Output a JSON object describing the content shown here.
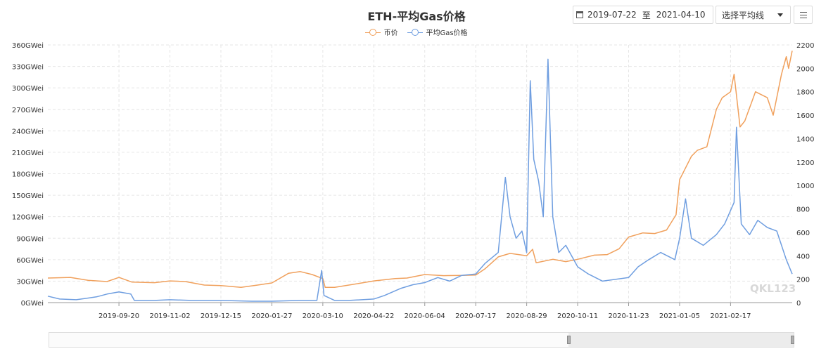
{
  "header": {
    "title": "ETH-平均Gas价格",
    "date_start": "2019-07-22",
    "date_sep": "至",
    "date_end": "2021-04-10",
    "avg_select": "选择平均线"
  },
  "legend": [
    {
      "name": "币价",
      "color": "#f0a05c"
    },
    {
      "name": "平均Gas价格",
      "color": "#6f9ee0"
    }
  ],
  "watermark": "QKL123",
  "chart_data": {
    "type": "line",
    "title": "ETH-平均Gas价格",
    "x_range": [
      "2019-07-22",
      "2021-04-10"
    ],
    "x_ticks": [
      "2019-09-20",
      "2019-11-02",
      "2019-12-15",
      "2020-01-27",
      "2020-03-10",
      "2020-04-22",
      "2020-06-04",
      "2020-07-17",
      "2020-08-29",
      "2020-10-11",
      "2020-11-23",
      "2021-01-05",
      "2021-02-17"
    ],
    "y_left": {
      "ticks": [
        "0GWei",
        "30GWei",
        "60GWei",
        "90GWei",
        "120GWei",
        "150GWei",
        "180GWei",
        "210GWei",
        "240GWei",
        "270GWei",
        "300GWei",
        "330GWei",
        "360GWei"
      ],
      "min": 0,
      "max": 360
    },
    "y_right": {
      "ticks": [
        "0",
        "200",
        "400",
        "600",
        "800",
        "1000",
        "1200",
        "1400",
        "1600",
        "1800",
        "2000",
        "2200"
      ],
      "min": 0,
      "max": 2200
    },
    "grid": true,
    "legend_position": "top-center",
    "series": [
      {
        "name": "币价",
        "axis": "right",
        "color": "#f0a05c",
        "points": [
          [
            "2019-07-22",
            210
          ],
          [
            "2019-08-10",
            215
          ],
          [
            "2019-08-25",
            190
          ],
          [
            "2019-09-10",
            180
          ],
          [
            "2019-09-20",
            215
          ],
          [
            "2019-10-01",
            175
          ],
          [
            "2019-10-20",
            170
          ],
          [
            "2019-11-02",
            185
          ],
          [
            "2019-11-15",
            180
          ],
          [
            "2019-12-01",
            150
          ],
          [
            "2019-12-15",
            145
          ],
          [
            "2020-01-01",
            130
          ],
          [
            "2020-01-15",
            150
          ],
          [
            "2020-01-27",
            168
          ],
          [
            "2020-02-10",
            250
          ],
          [
            "2020-02-20",
            265
          ],
          [
            "2020-03-01",
            240
          ],
          [
            "2020-03-10",
            205
          ],
          [
            "2020-03-12",
            130
          ],
          [
            "2020-03-20",
            130
          ],
          [
            "2020-04-10",
            165
          ],
          [
            "2020-04-22",
            185
          ],
          [
            "2020-05-10",
            205
          ],
          [
            "2020-05-20",
            210
          ],
          [
            "2020-06-04",
            240
          ],
          [
            "2020-06-20",
            230
          ],
          [
            "2020-07-05",
            232
          ],
          [
            "2020-07-17",
            235
          ],
          [
            "2020-07-25",
            290
          ],
          [
            "2020-08-05",
            390
          ],
          [
            "2020-08-15",
            420
          ],
          [
            "2020-08-29",
            400
          ],
          [
            "2020-09-03",
            455
          ],
          [
            "2020-09-06",
            340
          ],
          [
            "2020-09-20",
            370
          ],
          [
            "2020-10-01",
            350
          ],
          [
            "2020-10-11",
            370
          ],
          [
            "2020-10-25",
            405
          ],
          [
            "2020-11-05",
            410
          ],
          [
            "2020-11-15",
            460
          ],
          [
            "2020-11-23",
            560
          ],
          [
            "2020-12-05",
            595
          ],
          [
            "2020-12-15",
            590
          ],
          [
            "2020-12-25",
            620
          ],
          [
            "2021-01-02",
            750
          ],
          [
            "2021-01-05",
            1050
          ],
          [
            "2021-01-10",
            1150
          ],
          [
            "2021-01-15",
            1250
          ],
          [
            "2021-01-20",
            1300
          ],
          [
            "2021-01-28",
            1330
          ],
          [
            "2021-02-05",
            1650
          ],
          [
            "2021-02-10",
            1750
          ],
          [
            "2021-02-17",
            1800
          ],
          [
            "2021-02-20",
            1950
          ],
          [
            "2021-02-25",
            1500
          ],
          [
            "2021-03-01",
            1550
          ],
          [
            "2021-03-10",
            1800
          ],
          [
            "2021-03-20",
            1750
          ],
          [
            "2021-03-25",
            1600
          ],
          [
            "2021-04-01",
            1950
          ],
          [
            "2021-04-05",
            2100
          ],
          [
            "2021-04-07",
            2000
          ],
          [
            "2021-04-10",
            2150
          ]
        ]
      },
      {
        "name": "平均Gas价格",
        "axis": "left",
        "color": "#6f9ee0",
        "points": [
          [
            "2019-07-22",
            9
          ],
          [
            "2019-08-01",
            5
          ],
          [
            "2019-08-15",
            4
          ],
          [
            "2019-09-01",
            8
          ],
          [
            "2019-09-10",
            12
          ],
          [
            "2019-09-20",
            15
          ],
          [
            "2019-09-30",
            12
          ],
          [
            "2019-10-03",
            3
          ],
          [
            "2019-10-20",
            3
          ],
          [
            "2019-11-02",
            4
          ],
          [
            "2019-11-20",
            3
          ],
          [
            "2019-12-15",
            3
          ],
          [
            "2020-01-10",
            2
          ],
          [
            "2020-01-27",
            2
          ],
          [
            "2020-02-20",
            3
          ],
          [
            "2020-03-05",
            3
          ],
          [
            "2020-03-09",
            45
          ],
          [
            "2020-03-11",
            10
          ],
          [
            "2020-03-20",
            3
          ],
          [
            "2020-04-01",
            3
          ],
          [
            "2020-04-22",
            5
          ],
          [
            "2020-05-01",
            10
          ],
          [
            "2020-05-15",
            20
          ],
          [
            "2020-05-25",
            25
          ],
          [
            "2020-06-04",
            28
          ],
          [
            "2020-06-15",
            35
          ],
          [
            "2020-06-25",
            30
          ],
          [
            "2020-07-05",
            38
          ],
          [
            "2020-07-17",
            40
          ],
          [
            "2020-07-25",
            55
          ],
          [
            "2020-08-05",
            70
          ],
          [
            "2020-08-11",
            175
          ],
          [
            "2020-08-15",
            120
          ],
          [
            "2020-08-20",
            90
          ],
          [
            "2020-08-25",
            100
          ],
          [
            "2020-08-29",
            70
          ],
          [
            "2020-09-01",
            310
          ],
          [
            "2020-09-04",
            200
          ],
          [
            "2020-09-08",
            170
          ],
          [
            "2020-09-12",
            120
          ],
          [
            "2020-09-16",
            340
          ],
          [
            "2020-09-20",
            120
          ],
          [
            "2020-09-25",
            70
          ],
          [
            "2020-10-01",
            80
          ],
          [
            "2020-10-11",
            50
          ],
          [
            "2020-10-20",
            40
          ],
          [
            "2020-11-01",
            30
          ],
          [
            "2020-11-23",
            35
          ],
          [
            "2020-12-01",
            50
          ],
          [
            "2020-12-10",
            60
          ],
          [
            "2020-12-20",
            70
          ],
          [
            "2021-01-01",
            60
          ],
          [
            "2021-01-05",
            90
          ],
          [
            "2021-01-10",
            145
          ],
          [
            "2021-01-15",
            90
          ],
          [
            "2021-01-25",
            80
          ],
          [
            "2021-02-05",
            95
          ],
          [
            "2021-02-12",
            110
          ],
          [
            "2021-02-20",
            140
          ],
          [
            "2021-02-22",
            245
          ],
          [
            "2021-02-26",
            110
          ],
          [
            "2021-03-05",
            95
          ],
          [
            "2021-03-12",
            115
          ],
          [
            "2021-03-20",
            105
          ],
          [
            "2021-03-28",
            100
          ],
          [
            "2021-04-05",
            60
          ],
          [
            "2021-04-10",
            40
          ]
        ]
      }
    ]
  }
}
